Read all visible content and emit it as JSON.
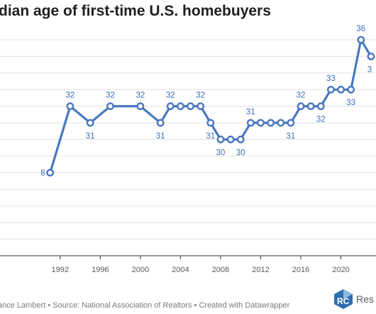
{
  "title": "dian age of first-time U.S. homebuyers",
  "footer": "ance Lambert • Source: National Association of Realtors • Created with Datawrapper",
  "logo": {
    "text": "Res",
    "icon": "resi-club-logo-icon"
  },
  "colors": {
    "line": "#4a78bd",
    "grid": "#e2e2e2",
    "label": "#3d6fb5"
  },
  "chart_data": {
    "type": "line",
    "title": "dian age of first-time U.S. homebuyers",
    "x": [
      1991,
      1993,
      1995,
      1997,
      2000,
      2002,
      2003,
      2004,
      2005,
      2006,
      2007,
      2008,
      2009,
      2010,
      2011,
      2012,
      2013,
      2014,
      2015,
      2016,
      2017,
      2018,
      2019,
      2020,
      2021,
      2022,
      2023
    ],
    "series": [
      {
        "values": [
          28,
          32,
          31,
          32,
          32,
          31,
          32,
          32,
          32,
          32,
          31,
          30,
          30,
          30,
          31,
          31,
          31,
          31,
          31,
          32,
          32,
          32,
          33,
          33,
          33,
          36,
          35
        ]
      }
    ],
    "data_labels": [
      {
        "x": 1991,
        "text": "8"
      },
      {
        "x": 1993,
        "text": "32"
      },
      {
        "x": 1995,
        "text": "31"
      },
      {
        "x": 1997,
        "text": "32"
      },
      {
        "x": 2000,
        "text": "32"
      },
      {
        "x": 2002,
        "text": "31"
      },
      {
        "x": 2003,
        "text": "32"
      },
      {
        "x": 2006,
        "text": "32"
      },
      {
        "x": 2007,
        "text": "31"
      },
      {
        "x": 2008,
        "text": "30"
      },
      {
        "x": 2010,
        "text": "30"
      },
      {
        "x": 2011,
        "text": "31"
      },
      {
        "x": 2015,
        "text": "31"
      },
      {
        "x": 2016,
        "text": "32"
      },
      {
        "x": 2018,
        "text": "32"
      },
      {
        "x": 2019,
        "text": "33"
      },
      {
        "x": 2021,
        "text": "33"
      },
      {
        "x": 2022,
        "text": "36"
      },
      {
        "x": 2023,
        "text": "3"
      }
    ],
    "x_ticks": [
      "1992",
      "1996",
      "2000",
      "2004",
      "2008",
      "2012",
      "2016",
      "2020"
    ],
    "xlim": [
      1986,
      2023.5
    ],
    "ylim": [
      23,
      36
    ],
    "grid": true
  }
}
